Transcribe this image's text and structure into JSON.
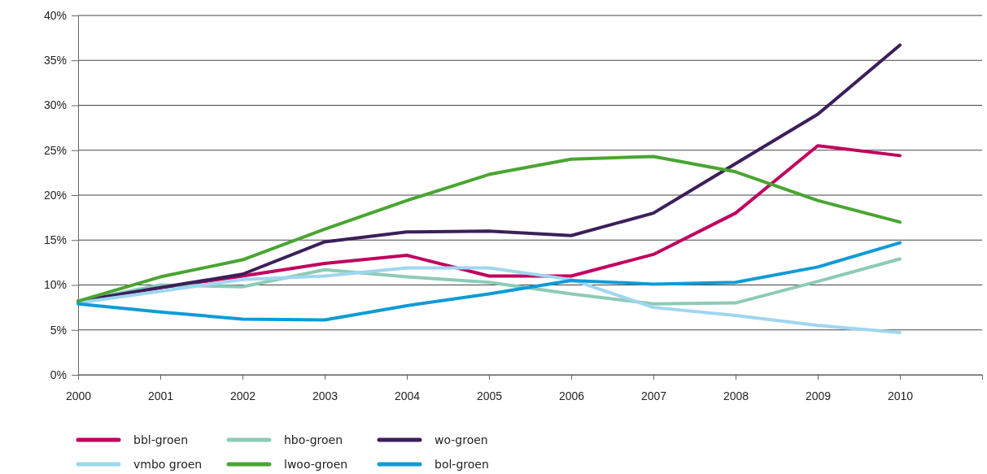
{
  "chart_data": {
    "type": "line",
    "x": [
      2000,
      2001,
      2002,
      2003,
      2004,
      2005,
      2006,
      2007,
      2008,
      2009,
      2010
    ],
    "xlim": [
      2000,
      2011
    ],
    "xticks": [
      2000,
      2001,
      2002,
      2003,
      2004,
      2005,
      2006,
      2007,
      2008,
      2009,
      2010,
      {
        "value": 2011,
        "label": null
      }
    ],
    "ylim": [
      0,
      40
    ],
    "yticks": [
      {
        "value": 0,
        "label": "0%"
      },
      {
        "value": 5,
        "label": "5%"
      },
      {
        "value": 10,
        "label": "10%"
      },
      {
        "value": 15,
        "label": "15%"
      },
      {
        "value": 20,
        "label": "20%"
      },
      {
        "value": 25,
        "label": "25%"
      },
      {
        "value": 30,
        "label": "30%"
      },
      {
        "value": 35,
        "label": "35%"
      },
      {
        "value": 40,
        "label": "40%"
      }
    ],
    "grid": "y",
    "legend": "bottom",
    "marker": "none",
    "line_style": "solid",
    "series": [
      {
        "name": "bbl-groen",
        "color": "#c0005f",
        "values": [
          8.2,
          9.7,
          11.0,
          12.4,
          13.3,
          11.0,
          11.0,
          13.4,
          18.0,
          25.5,
          24.4
        ]
      },
      {
        "name": "hbo-groen",
        "color": "#8ccbb8",
        "values": [
          8.2,
          10.0,
          9.8,
          11.7,
          10.9,
          10.3,
          9.0,
          7.9,
          8.0,
          10.4,
          12.9
        ]
      },
      {
        "name": "wo-groen",
        "color": "#3c1f5a",
        "values": [
          8.2,
          9.7,
          11.2,
          14.8,
          15.9,
          16.0,
          15.5,
          18.0,
          23.5,
          29.0,
          36.7
        ]
      },
      {
        "name": "vmbo groen",
        "color": "#9fd6f0",
        "values": [
          8.0,
          9.3,
          10.6,
          11.0,
          11.9,
          11.9,
          10.6,
          7.5,
          6.6,
          5.5,
          4.7
        ]
      },
      {
        "name": "lwoo-groen",
        "color": "#4aa532",
        "values": [
          8.2,
          10.9,
          12.8,
          16.2,
          19.4,
          22.3,
          24.0,
          24.3,
          22.6,
          19.4,
          17.0
        ]
      },
      {
        "name": "bol-groen",
        "color": "#0f9bd7",
        "values": [
          7.9,
          7.0,
          6.2,
          6.1,
          7.7,
          9.0,
          10.5,
          10.1,
          10.3,
          12.0,
          14.7
        ]
      }
    ]
  }
}
